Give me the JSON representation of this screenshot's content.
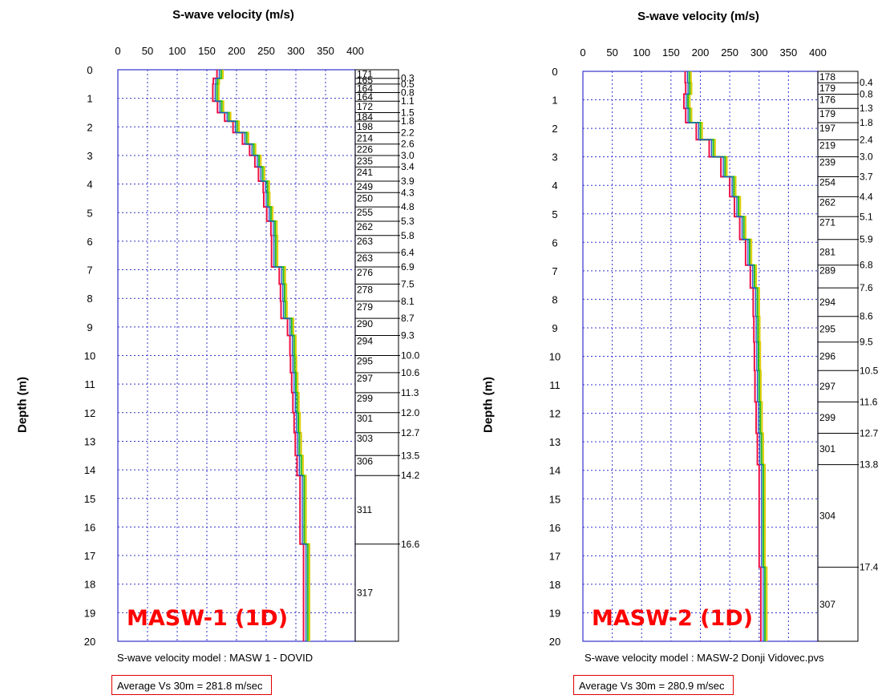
{
  "chart_data": [
    {
      "type": "line",
      "title": "S-wave velocity (m/s)",
      "xlabel": "S-wave velocity (m/s)",
      "ylabel": "Depth (m)",
      "xlim": [
        0,
        400
      ],
      "ylim": [
        0,
        20
      ],
      "x_ticks": [
        "0",
        "50",
        "100",
        "150",
        "200",
        "250",
        "300",
        "350",
        "400"
      ],
      "y_ticks": [
        "0",
        "1",
        "2",
        "3",
        "4",
        "5",
        "6",
        "7",
        "8",
        "9",
        "10",
        "11",
        "12",
        "13",
        "14",
        "15",
        "16",
        "17",
        "18",
        "19",
        "20"
      ],
      "grid": true,
      "inverted_y": true,
      "label": "MASW-1 (1D)",
      "model_caption": "S-wave velocity model : MASW 1 - DOVID",
      "average_text": "Average Vs 30m = 281.8 m/sec",
      "layer_velocities": [
        171,
        165,
        164,
        164,
        172,
        184,
        198,
        214,
        226,
        235,
        241,
        249,
        250,
        255,
        262,
        263,
        263,
        276,
        278,
        279,
        290,
        294,
        295,
        297,
        299,
        301,
        303,
        306,
        311,
        317
      ],
      "layer_boundaries": [
        0.3,
        0.5,
        0.8,
        1.1,
        1.5,
        1.8,
        2.2,
        2.6,
        3.0,
        3.4,
        3.9,
        4.3,
        4.8,
        5.3,
        5.8,
        6.4,
        6.9,
        7.5,
        8.1,
        8.7,
        9.3,
        10.0,
        10.6,
        11.3,
        12.0,
        12.7,
        13.5,
        14.2,
        16.6
      ],
      "boundary_labels": [
        "0.3",
        "0.5",
        "0.8",
        "1.1",
        "1.5",
        "1.8",
        "2.2",
        "2.6",
        "3.0",
        "3.4",
        "3.9",
        "4.3",
        "4.8",
        "5.3",
        "5.8",
        "6.4",
        "6.9",
        "7.5",
        "8.1",
        "8.7",
        "9.3",
        "10.0",
        "10.6",
        "11.3",
        "12.0",
        "12.7",
        "13.5",
        "14.2",
        "16.6"
      ],
      "velocity_labels": [
        "171",
        "165",
        "164",
        "164",
        "172",
        "184",
        "198",
        "214",
        "226",
        "235",
        "241",
        "249",
        "250",
        "255",
        "262",
        "263",
        "263",
        "276",
        "278",
        "279",
        "290",
        "294",
        "295",
        "297",
        "299",
        "301",
        "303",
        "306",
        "311",
        "317"
      ]
    },
    {
      "type": "line",
      "title": "S-wave velocity (m/s)",
      "xlabel": "S-wave velocity (m/s)",
      "ylabel": "Depth (m)",
      "xlim": [
        0,
        400
      ],
      "ylim": [
        0,
        20
      ],
      "x_ticks": [
        "0",
        "50",
        "100",
        "150",
        "200",
        "250",
        "300",
        "350",
        "400"
      ],
      "y_ticks": [
        "0",
        "1",
        "2",
        "3",
        "4",
        "5",
        "6",
        "7",
        "8",
        "9",
        "10",
        "11",
        "12",
        "13",
        "14",
        "15",
        "16",
        "17",
        "18",
        "19",
        "20"
      ],
      "grid": true,
      "inverted_y": true,
      "label": "MASW-2 (1D)",
      "model_caption": "S-wave velocity model : MASW-2 Donji Vidovec.pvs",
      "average_text": "Average Vs 30m = 280.9 m/sec",
      "layer_velocities": [
        178,
        179,
        176,
        179,
        197,
        219,
        239,
        254,
        262,
        271,
        281,
        289,
        294,
        295,
        296,
        297,
        299,
        301,
        304,
        307
      ],
      "layer_boundaries": [
        0.4,
        0.8,
        1.3,
        1.8,
        2.4,
        3.0,
        3.7,
        4.4,
        5.1,
        5.9,
        6.8,
        7.6,
        8.6,
        9.5,
        10.5,
        11.6,
        12.7,
        13.8,
        17.4
      ],
      "boundary_labels": [
        "0.4",
        "0.8",
        "1.3",
        "1.8",
        "2.4",
        "3.0",
        "3.7",
        "4.4",
        "5.1",
        "5.9",
        "6.8",
        "7.6",
        "8.6",
        "9.5",
        "10.5",
        "11.6",
        "12.7",
        "13.8",
        "17.4"
      ],
      "velocity_labels": [
        "178",
        "179",
        "176",
        "179",
        "197",
        "219",
        "239",
        "254",
        "262",
        "271",
        "281",
        "289",
        "294",
        "295",
        "296",
        "297",
        "299",
        "301",
        "304",
        "307"
      ]
    }
  ],
  "colors": {
    "frame": "#3333cc",
    "grid": "#3333cc",
    "profile_main": "#2255cc",
    "profile_green": "#22bb22",
    "profile_yellow": "#ddcc00",
    "profile_red": "#ee1144",
    "label_red": "#ff0000",
    "avg_border": "#e00000"
  }
}
